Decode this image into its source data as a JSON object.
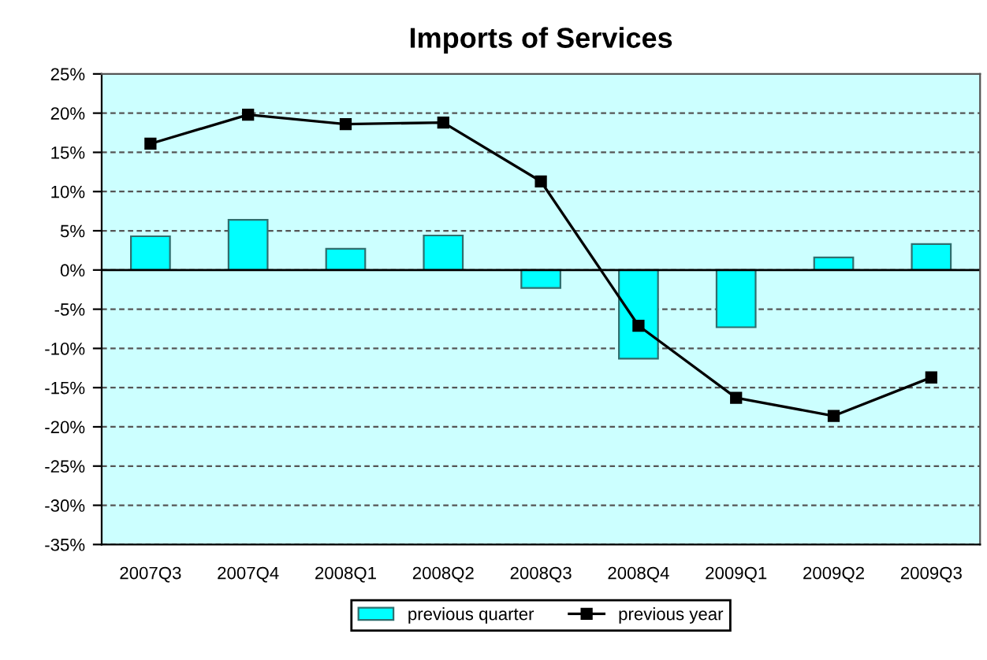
{
  "chart_data": {
    "type": "bar",
    "title": "Imports of Services",
    "categories": [
      "2007Q3",
      "2007Q4",
      "2008Q1",
      "2008Q2",
      "2008Q3",
      "2008Q4",
      "2009Q1",
      "2009Q2",
      "2009Q3"
    ],
    "series": [
      {
        "name": "previous quarter",
        "color": "#00ffff",
        "values": [
          4.3,
          6.4,
          2.7,
          4.4,
          -2.3,
          -11.3,
          -7.3,
          1.6,
          3.3
        ]
      },
      {
        "name": "previous year",
        "type": "line",
        "color": "#000000",
        "marker": "square",
        "values": [
          16.1,
          19.8,
          18.6,
          18.8,
          11.3,
          -7.1,
          -16.3,
          -18.6,
          -13.7
        ]
      }
    ],
    "ylim": [
      -35,
      25
    ],
    "yticks": [
      {
        "value": -35,
        "label": "-35%"
      },
      {
        "value": -30,
        "label": "-30%"
      },
      {
        "value": -25,
        "label": "-25%"
      },
      {
        "value": -20,
        "label": "-20%"
      },
      {
        "value": -15,
        "label": "-15%"
      },
      {
        "value": -10,
        "label": "-10%"
      },
      {
        "value": -5,
        "label": "-5%"
      },
      {
        "value": 0,
        "label": "0%"
      },
      {
        "value": 5,
        "label": "5%"
      },
      {
        "value": 10,
        "label": "10%"
      },
      {
        "value": 15,
        "label": "15%"
      },
      {
        "value": 20,
        "label": "20%"
      },
      {
        "value": 25,
        "label": "25%"
      }
    ],
    "grid": "y",
    "legend": "bottom"
  }
}
